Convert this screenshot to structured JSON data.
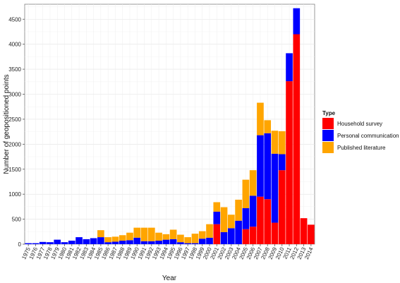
{
  "chart_data": {
    "type": "bar",
    "stacked": true,
    "xlabel": "Year",
    "ylabel": "Number of geopositioned points",
    "ylim": [
      0,
      4800
    ],
    "yticks": [
      0,
      500,
      1000,
      1500,
      2000,
      2500,
      3000,
      3500,
      4000,
      4500
    ],
    "grid": true,
    "legend": {
      "title": "Type",
      "position": "right"
    },
    "categories": [
      "1975",
      "1976",
      "1977",
      "1978",
      "1979",
      "1980",
      "1981",
      "1982",
      "1983",
      "1984",
      "1985",
      "1986",
      "1987",
      "1988",
      "1989",
      "1990",
      "1991",
      "1992",
      "1993",
      "1994",
      "1995",
      "1996",
      "1997",
      "1998",
      "1999",
      "2000",
      "2001",
      "2002",
      "2003",
      "2004",
      "2005",
      "2006",
      "2007",
      "2008",
      "2009",
      "2010",
      "2011",
      "2012",
      "2013",
      "2014"
    ],
    "series": [
      {
        "name": "Household survey",
        "color": "#ff0000",
        "values": [
          0,
          0,
          0,
          0,
          0,
          0,
          0,
          0,
          0,
          0,
          0,
          0,
          0,
          0,
          0,
          0,
          0,
          0,
          0,
          0,
          0,
          0,
          0,
          0,
          0,
          0,
          400,
          0,
          0,
          0,
          300,
          350,
          950,
          900,
          430,
          1480,
          3260,
          4200,
          520,
          390
        ]
      },
      {
        "name": "Personal communication",
        "color": "#0000ff",
        "values": [
          20,
          20,
          45,
          40,
          90,
          40,
          70,
          140,
          100,
          120,
          140,
          40,
          50,
          70,
          80,
          130,
          60,
          60,
          70,
          90,
          100,
          40,
          20,
          20,
          110,
          130,
          250,
          240,
          320,
          470,
          420,
          620,
          1230,
          1320,
          1380,
          320,
          560,
          520,
          0,
          0
        ]
      },
      {
        "name": "Published literature",
        "color": "#ffa500",
        "values": [
          0,
          0,
          0,
          0,
          0,
          0,
          0,
          0,
          0,
          0,
          140,
          100,
          100,
          110,
          150,
          200,
          270,
          270,
          160,
          110,
          190,
          150,
          120,
          190,
          150,
          270,
          190,
          500,
          270,
          420,
          570,
          510,
          650,
          260,
          460,
          460,
          0,
          0,
          0,
          0
        ]
      }
    ]
  }
}
